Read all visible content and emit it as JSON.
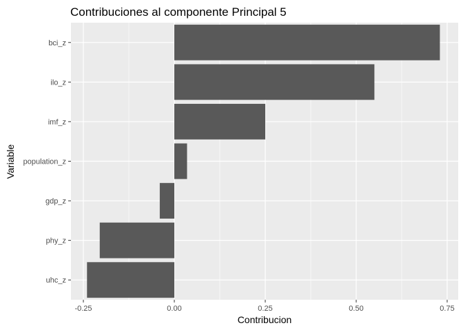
{
  "chart_data": {
    "type": "bar",
    "orientation": "horizontal",
    "title": "Contribuciones al componente Principal 5",
    "xlabel": "Contribucion",
    "ylabel": "Variable",
    "categories": [
      "bci_z",
      "ilo_z",
      "imf_z",
      "population_z",
      "gdp_z",
      "phy_z",
      "uhc_z"
    ],
    "values": [
      0.73,
      0.55,
      0.25,
      0.035,
      -0.04,
      -0.205,
      -0.24
    ],
    "xlim": [
      -0.25,
      0.75
    ],
    "xticks": [
      -0.25,
      0.0,
      0.25,
      0.5,
      0.75
    ],
    "xtick_labels": [
      "-0.25",
      "0.00",
      "0.25",
      "0.50",
      "0.75"
    ],
    "grid": true,
    "colors": {
      "panel": "#ebebeb",
      "grid_major": "#ffffff",
      "bar": "#595959",
      "tick": "#333333"
    }
  }
}
